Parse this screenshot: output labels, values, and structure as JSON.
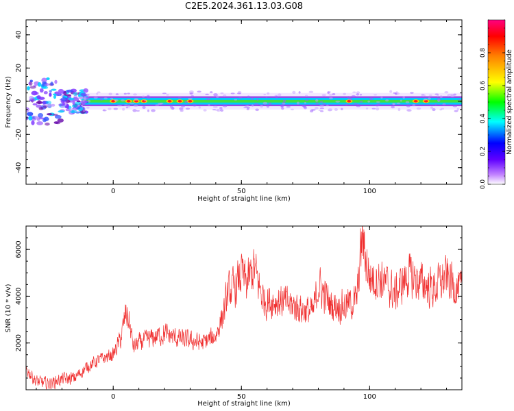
{
  "title": "C2E5.2024.361.13.03.G08",
  "charts": {
    "spectrogram": {
      "type": "heatmap",
      "xlabel": "Height of straight line (km)",
      "ylabel": "Frequency (Hz)",
      "xlim": [
        -34,
        136
      ],
      "ylim": [
        -50,
        49
      ],
      "xticks": [
        "0",
        "50",
        "100"
      ],
      "yticks": [
        "-40",
        "-20",
        "0",
        "20",
        "40"
      ],
      "band_center_hz": 0,
      "band_halfwidth_hz": 3,
      "hotspots_km": [
        0,
        6,
        9,
        12,
        22,
        26,
        30,
        92,
        118,
        122
      ],
      "colorbar": {
        "label": "Normalized spectral amplitude",
        "range": [
          0,
          1
        ],
        "ticks": [
          "0.0",
          "0.2",
          "0.4",
          "0.6",
          "0.8"
        ]
      }
    },
    "snr": {
      "type": "line",
      "xlabel": "Height of straight line (km)",
      "ylabel": "SNR (10 * v/v)",
      "xlim": [
        -34,
        136
      ],
      "ylim": [
        0,
        7000
      ],
      "xticks": [
        "0",
        "50",
        "100"
      ],
      "yticks": [
        "2000",
        "4000",
        "6000"
      ],
      "color": "#f03030",
      "series": [
        {
          "x": [
            -34,
            -30,
            -25,
            -20,
            -15,
            -10,
            -5,
            0,
            3,
            5,
            6,
            8,
            10,
            15,
            20,
            25,
            30,
            35,
            40,
            43,
            45,
            48,
            50,
            52,
            55,
            58,
            60,
            65,
            70,
            75,
            78,
            80,
            85,
            90,
            95,
            97,
            100,
            105,
            110,
            115,
            120,
            125,
            130,
            136
          ],
          "y": [
            900,
            350,
            250,
            450,
            500,
            1000,
            1300,
            1500,
            2200,
            3300,
            3000,
            1800,
            2000,
            2200,
            2400,
            2200,
            2100,
            2000,
            2300,
            3300,
            4200,
            4400,
            5000,
            4500,
            5200,
            4000,
            3800,
            3800,
            3600,
            3400,
            3300,
            4500,
            3600,
            3600,
            3800,
            6500,
            4800,
            4700,
            4100,
            4900,
            4600,
            4300,
            4800,
            4200
          ]
        }
      ],
      "noise_amplitude": 700
    }
  },
  "chart_data": [
    {
      "type": "heatmap",
      "title": "C2E5.2024.361.13.03.G08",
      "xlabel": "Height of straight line (km)",
      "ylabel": "Frequency (Hz)",
      "xlim": [
        -34,
        136
      ],
      "ylim": [
        -50,
        49
      ],
      "colorbar_label": "Normalized spectral amplitude",
      "colorbar_range": [
        0,
        1
      ]
    },
    {
      "type": "line",
      "xlabel": "Height of straight line (km)",
      "ylabel": "SNR (10 * v/v)",
      "xlim": [
        -34,
        136
      ],
      "ylim": [
        0,
        7000
      ]
    }
  ]
}
